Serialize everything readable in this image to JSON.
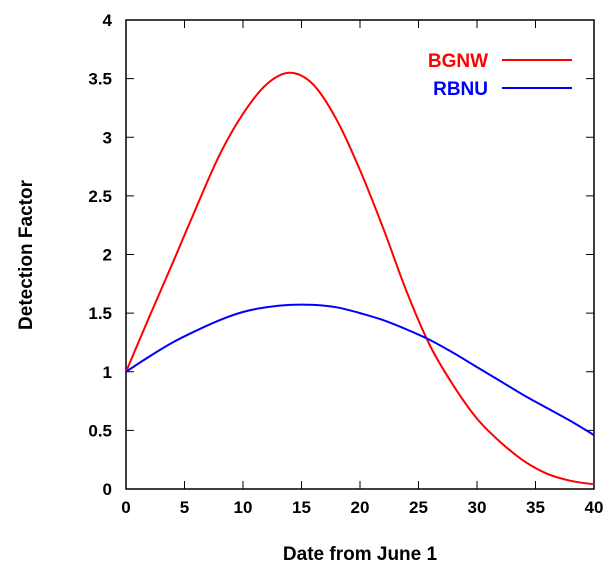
{
  "chart_data": {
    "type": "line",
    "xlabel": "Date from June 1",
    "ylabel": "Detection Factor",
    "xlim": [
      0,
      40
    ],
    "ylim": [
      0,
      4
    ],
    "xticks": [
      0,
      5,
      10,
      15,
      20,
      25,
      30,
      35,
      40
    ],
    "xtick_labels": [
      "0",
      "5",
      "10",
      "15",
      "20",
      "25",
      "30",
      "35",
      "40"
    ],
    "yticks": [
      0,
      0.5,
      1,
      1.5,
      2,
      2.5,
      3,
      3.5,
      4
    ],
    "ytick_labels": [
      "0",
      "0.5",
      "1",
      "1.5",
      "2",
      "2.5",
      "3",
      "3.5",
      "4"
    ],
    "grid": false,
    "legend_position": "top-right",
    "x": [
      0,
      2,
      4,
      6,
      8,
      10,
      12,
      14,
      16,
      18,
      20,
      22,
      24,
      26,
      28,
      30,
      32,
      34,
      36,
      38,
      40
    ],
    "series": [
      {
        "name": "BGNW",
        "color": "#ff0000",
        "values": [
          1.0,
          1.47,
          1.93,
          2.4,
          2.85,
          3.2,
          3.45,
          3.55,
          3.45,
          3.15,
          2.72,
          2.22,
          1.68,
          1.22,
          0.88,
          0.6,
          0.4,
          0.24,
          0.13,
          0.07,
          0.04
        ]
      },
      {
        "name": "RBNU",
        "color": "#0000ff",
        "values": [
          1.0,
          1.13,
          1.25,
          1.35,
          1.44,
          1.51,
          1.55,
          1.57,
          1.57,
          1.55,
          1.5,
          1.44,
          1.36,
          1.27,
          1.16,
          1.04,
          0.92,
          0.8,
          0.69,
          0.58,
          0.46
        ]
      }
    ]
  }
}
